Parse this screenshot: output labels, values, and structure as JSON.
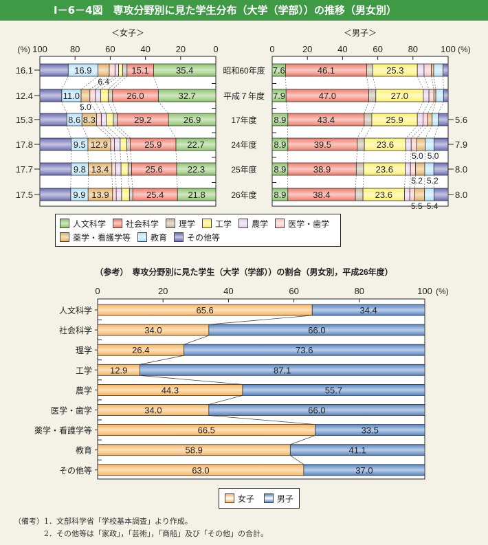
{
  "title": "Ⅰ－6－4図　専攻分野別に見た学生分布（大学（学部））の推移（男女別）",
  "colors": {
    "fields": [
      "#8cc46a",
      "#f07a68",
      "#c4b49c",
      "#fff068",
      "#e2cdea",
      "#fcc4c4",
      "#e4b264",
      "#b4e2f8",
      "#6c6cb4"
    ],
    "female": "#f8b45c",
    "male": "#5484c4",
    "title_bg": "#3f9a46"
  },
  "legend_fields": [
    "人文科学",
    "社会科学",
    "理学",
    "工学",
    "農学",
    "医学・歯学",
    "薬学・看護学等",
    "教育",
    "その他等"
  ],
  "chart_data": [
    {
      "type": "bar",
      "stacked": true,
      "orientation": "horizontal",
      "title": "＜女子＞",
      "unit_label": "(%)",
      "xlim": [
        100,
        0
      ],
      "ticks": [
        "100",
        "80",
        "60",
        "40",
        "20",
        "0"
      ],
      "categories": [
        "昭和60年度",
        "平成７年度",
        "17年度",
        "24年度",
        "25年度",
        "26年度"
      ],
      "series_names": [
        "人文科学",
        "社会科学",
        "理学",
        "工学",
        "農学",
        "医学・歯学",
        "薬学・看護学等",
        "教育",
        "その他等"
      ],
      "rows": [
        [
          35.4,
          15.1,
          2.5,
          2.3,
          2.0,
          3.3,
          6.4,
          16.9,
          16.1
        ],
        [
          32.7,
          26.0,
          2.5,
          4.3,
          3.0,
          3.1,
          5.0,
          11.0,
          12.4
        ],
        [
          26.9,
          29.2,
          2.2,
          4.0,
          2.8,
          2.7,
          8.3,
          8.6,
          15.3
        ],
        [
          22.7,
          25.9,
          2.0,
          3.8,
          3.2,
          2.2,
          12.9,
          9.5,
          17.8
        ],
        [
          22.3,
          25.6,
          2.0,
          4.0,
          3.0,
          2.2,
          13.4,
          9.8,
          17.7
        ],
        [
          21.8,
          25.4,
          1.9,
          4.5,
          3.0,
          2.1,
          13.9,
          9.9,
          17.5
        ]
      ],
      "inside_labels": [
        [
          0,
          1,
          7
        ],
        [
          0,
          1,
          7
        ],
        [
          0,
          1,
          6,
          7
        ],
        [
          0,
          1,
          6,
          7
        ],
        [
          0,
          1,
          6,
          7
        ],
        [
          0,
          1,
          6,
          7
        ]
      ],
      "outer_label": [
        "16.1",
        "12.4",
        "15.3",
        "17.8",
        "17.7",
        "17.5"
      ],
      "below_labels": [
        [
          {
            "segment": 6,
            "text": "6.4"
          }
        ],
        [
          {
            "segment": 6,
            "text": "5.0"
          }
        ],
        [],
        [],
        [],
        []
      ]
    },
    {
      "type": "bar",
      "stacked": true,
      "orientation": "horizontal",
      "title": "＜男子＞",
      "unit_label": "(%)",
      "xlim": [
        0,
        100
      ],
      "ticks": [
        "0",
        "20",
        "40",
        "60",
        "80",
        "100"
      ],
      "categories": [
        "昭和60年度",
        "平成７年度",
        "17年度",
        "24年度",
        "25年度",
        "26年度"
      ],
      "series_names": [
        "人文科学",
        "社会科学",
        "理学",
        "工学",
        "農学",
        "医学・歯学",
        "薬学・看護学等",
        "教育",
        "その他等"
      ],
      "rows": [
        [
          7.6,
          46.1,
          3.5,
          25.3,
          3.8,
          4.2,
          1.3,
          5.3,
          2.9
        ],
        [
          7.9,
          47.0,
          4.0,
          27.0,
          3.2,
          2.8,
          1.1,
          4.4,
          2.6
        ],
        [
          8.9,
          43.4,
          4.3,
          25.9,
          3.2,
          2.6,
          2.6,
          3.5,
          5.6
        ],
        [
          8.9,
          39.5,
          4.0,
          23.6,
          3.0,
          3.0,
          5.0,
          5.0,
          7.9
        ],
        [
          8.9,
          38.9,
          4.2,
          23.6,
          3.0,
          2.9,
          5.2,
          5.2,
          8.0
        ],
        [
          8.9,
          38.4,
          4.3,
          23.6,
          3.0,
          2.9,
          5.5,
          5.4,
          8.0
        ]
      ],
      "inside_labels": [
        [
          0,
          1,
          3
        ],
        [
          0,
          1,
          3
        ],
        [
          0,
          1,
          3
        ],
        [
          0,
          1,
          3
        ],
        [
          0,
          1,
          3
        ],
        [
          0,
          1,
          3
        ]
      ],
      "outer_label": [
        null,
        null,
        "5.6",
        "7.9",
        "8.0",
        "8.0"
      ],
      "below_labels": [
        [],
        [],
        [],
        [
          {
            "segment": 6,
            "text": "5.0"
          },
          {
            "segment": 7,
            "text": "5.0"
          }
        ],
        [
          {
            "segment": 6,
            "text": "5.2"
          },
          {
            "segment": 7,
            "text": "5.2"
          }
        ],
        [
          {
            "segment": 6,
            "text": "5.5"
          },
          {
            "segment": 7,
            "text": "5.4"
          }
        ]
      ]
    },
    {
      "type": "bar",
      "stacked": true,
      "orientation": "horizontal",
      "title": "（参考）　専攻分野別に見た学生（大学（学部））の割合（男女別，平成26年度）",
      "unit_label": "(%)",
      "xlim": [
        0,
        100
      ],
      "ticks": [
        "0",
        "20",
        "40",
        "60",
        "80",
        "100"
      ],
      "categories": [
        "人文科学",
        "社会科学",
        "理学",
        "工学",
        "農学",
        "医学・歯学",
        "薬学・看護学等",
        "教育",
        "その他等"
      ],
      "series": [
        {
          "name": "女子",
          "values": [
            65.6,
            34.0,
            26.4,
            12.9,
            44.3,
            34.0,
            66.5,
            58.9,
            63.0
          ]
        },
        {
          "name": "男子",
          "values": [
            34.4,
            66.0,
            73.6,
            87.1,
            55.7,
            66.0,
            33.5,
            41.1,
            37.0
          ]
        }
      ]
    }
  ],
  "notes": {
    "label": "（備考）",
    "items": [
      "1．文部科学省「学校基本調査」より作成。",
      "2．その他等は「家政」，「芸術」，「商船」及び「その他」の合計。"
    ]
  }
}
